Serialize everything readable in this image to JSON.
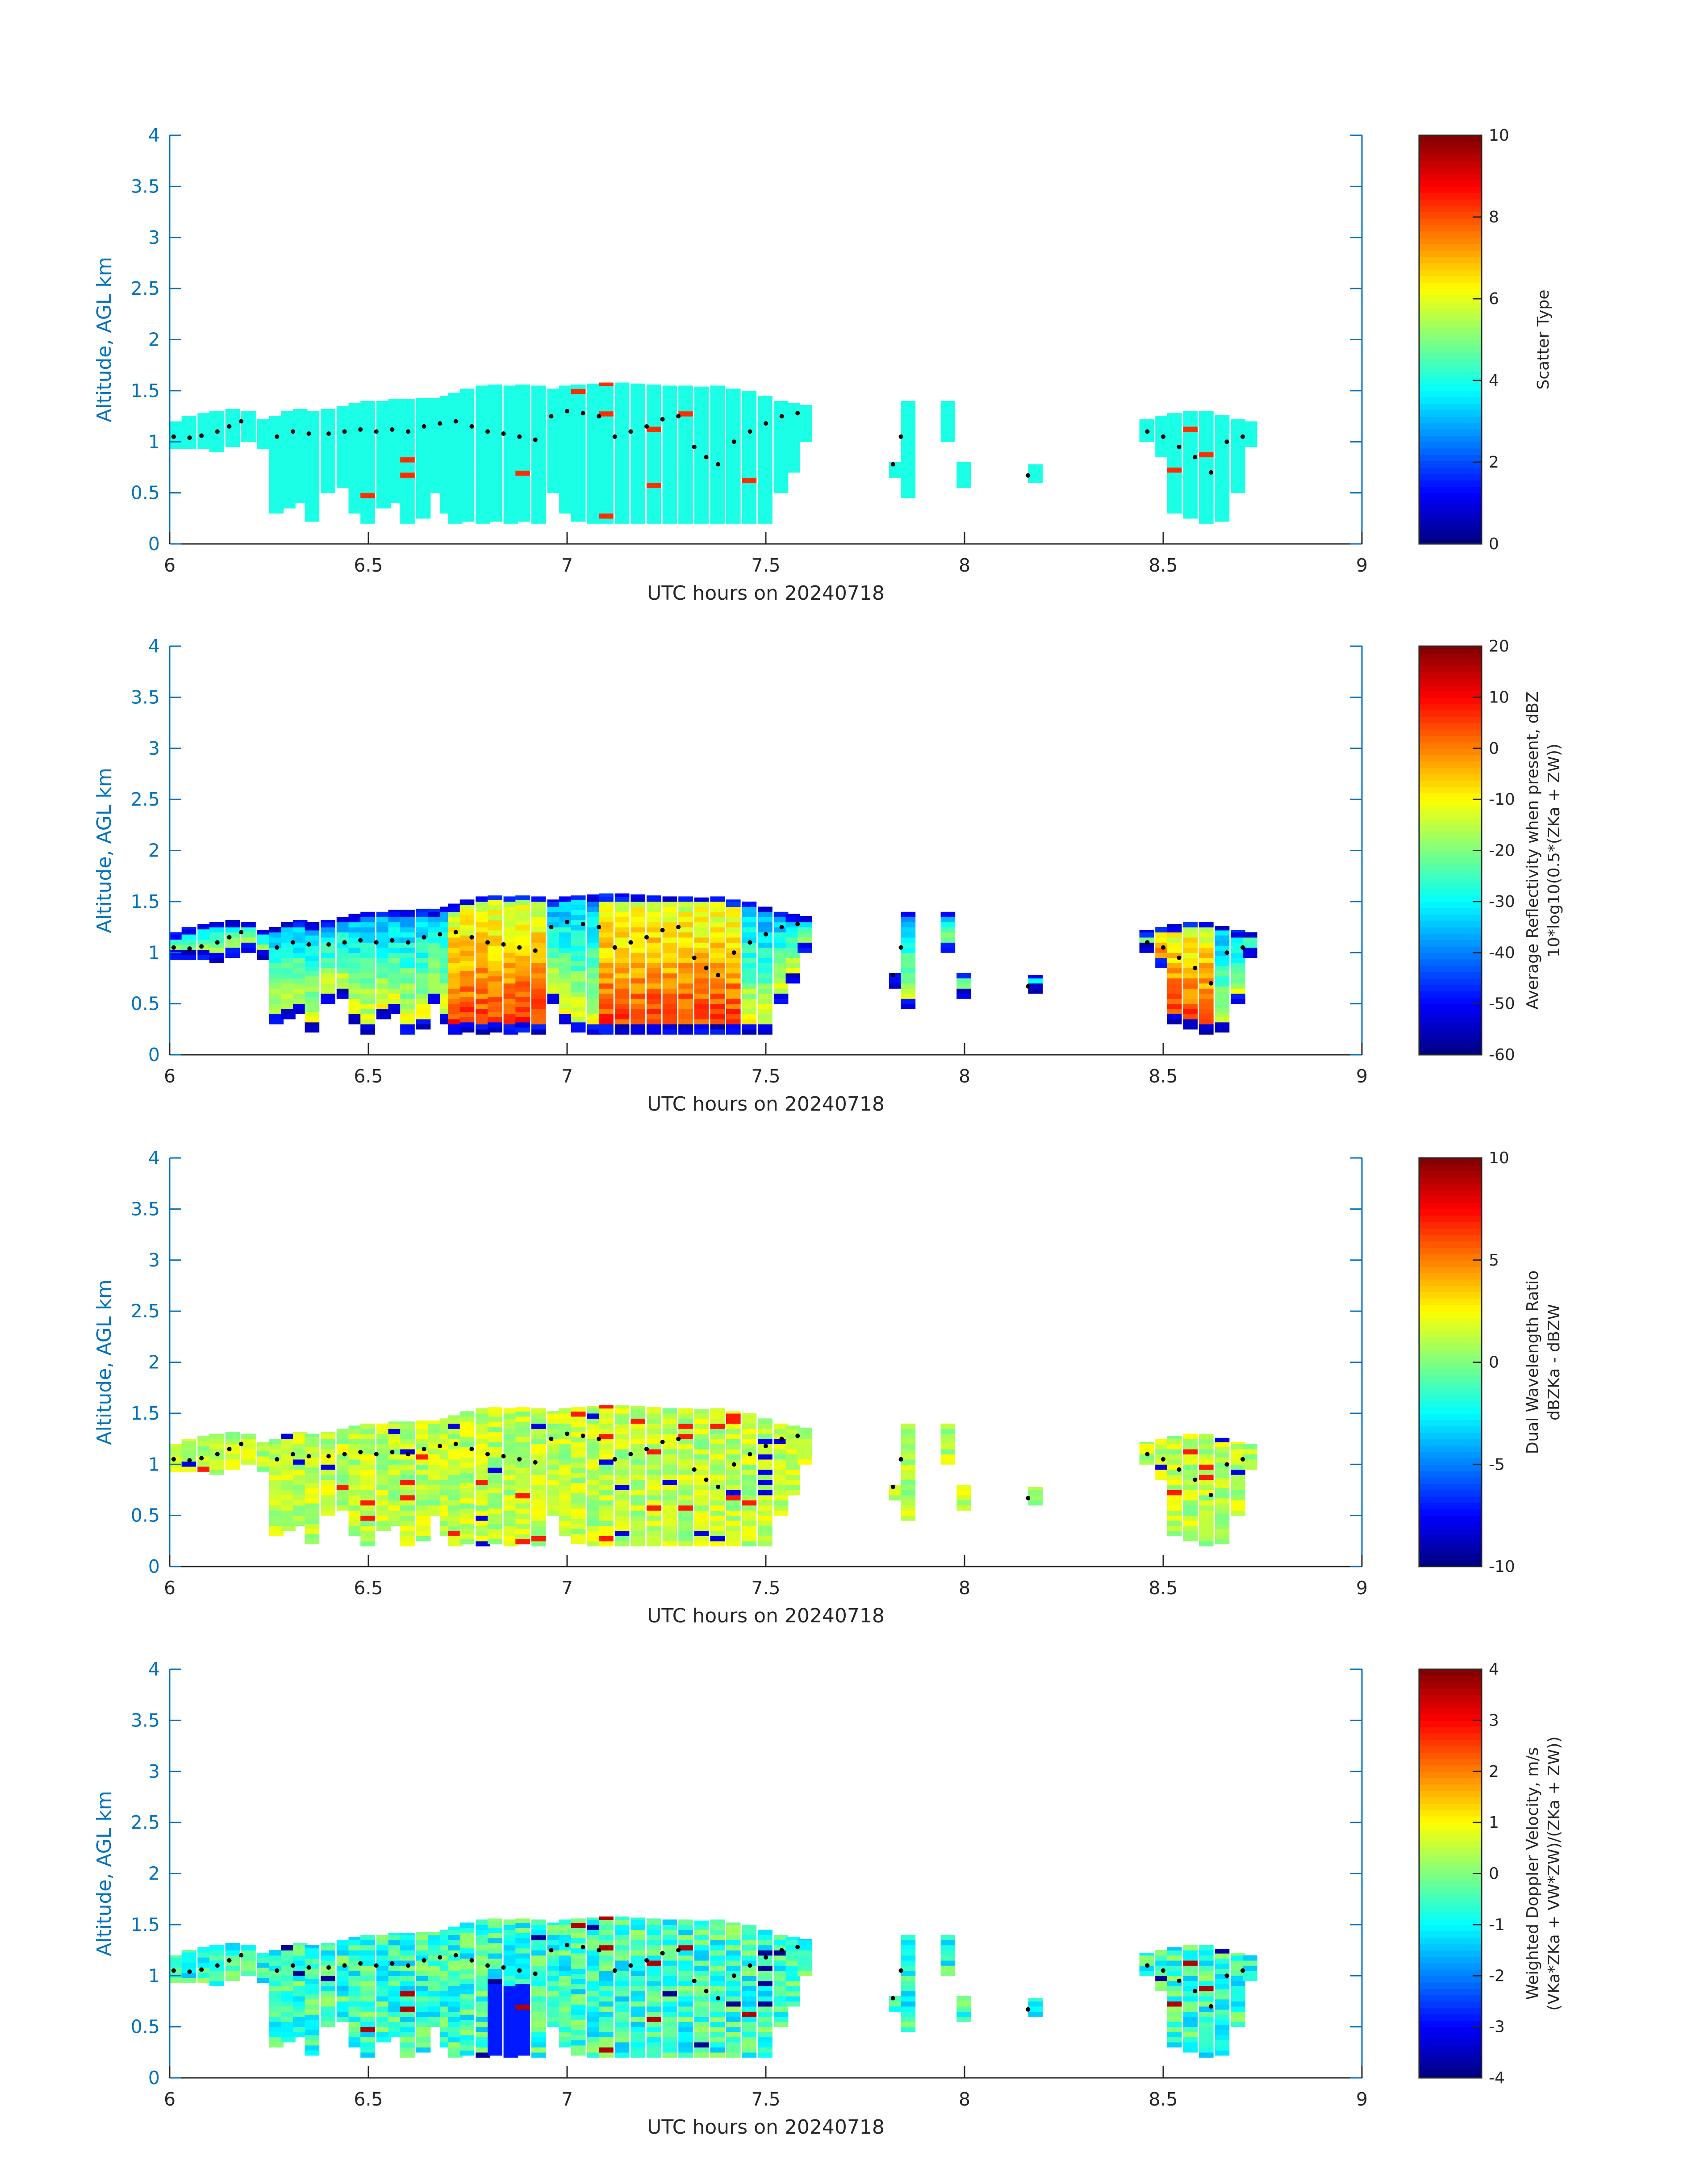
{
  "chart_data": [
    {
      "type": "heatmap",
      "xlabel": "UTC hours on 20240718",
      "ylabel": "Altitude, AGL km",
      "xlim": [
        6,
        9
      ],
      "ylim": [
        0,
        4
      ],
      "xticks": [
        "6",
        "6.5",
        "7",
        "7.5",
        "8",
        "8.5",
        "9"
      ],
      "yticks": [
        "0",
        "0.5",
        "1",
        "1.5",
        "2",
        "2.5",
        "3",
        "3.5",
        "4"
      ],
      "colorbar": {
        "label": [
          "Scatter Type"
        ],
        "lim": [
          0,
          10
        ],
        "ticks": [
          "0",
          "2",
          "4",
          "6",
          "8",
          "10"
        ]
      }
    },
    {
      "type": "heatmap",
      "xlabel": "UTC hours on 20240718",
      "ylabel": "Altitude, AGL km",
      "xlim": [
        6,
        9
      ],
      "ylim": [
        0,
        4
      ],
      "xticks": [
        "6",
        "6.5",
        "7",
        "7.5",
        "8",
        "8.5",
        "9"
      ],
      "yticks": [
        "0",
        "0.5",
        "1",
        "1.5",
        "2",
        "2.5",
        "3",
        "3.5",
        "4"
      ],
      "colorbar": {
        "label": [
          "Average Reflectivity when present, dBZ",
          "10*log10(0.5*(ZKa + ZW))"
        ],
        "lim": [
          -60,
          20
        ],
        "ticks": [
          "-60",
          "-50",
          "-40",
          "-30",
          "-20",
          "-10",
          "0",
          "10",
          "20"
        ]
      }
    },
    {
      "type": "heatmap",
      "xlabel": "UTC hours on 20240718",
      "ylabel": "Altitude, AGL km",
      "xlim": [
        6,
        9
      ],
      "ylim": [
        0,
        4
      ],
      "xticks": [
        "6",
        "6.5",
        "7",
        "7.5",
        "8",
        "8.5",
        "9"
      ],
      "yticks": [
        "0",
        "0.5",
        "1",
        "1.5",
        "2",
        "2.5",
        "3",
        "3.5",
        "4"
      ],
      "colorbar": {
        "label": [
          "Dual Wavelength Ratio",
          "dBZKa - dBZW"
        ],
        "lim": [
          -10,
          10
        ],
        "ticks": [
          "-10",
          "-5",
          "0",
          "5",
          "10"
        ]
      }
    },
    {
      "type": "heatmap",
      "xlabel": "UTC hours on 20240718",
      "ylabel": "Altitude, AGL km",
      "xlim": [
        6,
        9
      ],
      "ylim": [
        0,
        4
      ],
      "xticks": [
        "6",
        "6.5",
        "7",
        "7.5",
        "8",
        "8.5",
        "9"
      ],
      "yticks": [
        "0",
        "0.5",
        "1",
        "1.5",
        "2",
        "2.5",
        "3",
        "3.5",
        "4"
      ],
      "colorbar": {
        "label": [
          "Weighted Doppler Velocity, m/s",
          "(VKa*ZKa + VW*ZW)/(ZKa + ZW))"
        ],
        "lim": [
          -4,
          4
        ],
        "ticks": [
          "-4",
          "-3",
          "-2",
          "-1",
          "0",
          "1",
          "2",
          "3",
          "4"
        ]
      }
    }
  ],
  "cloud_segments": [
    [
      6.0,
      0.93,
      1.2
    ],
    [
      6.03,
      0.93,
      1.25
    ],
    [
      6.07,
      0.93,
      1.28
    ],
    [
      6.1,
      0.9,
      1.3
    ],
    [
      6.14,
      0.95,
      1.32
    ],
    [
      6.18,
      1.0,
      1.3
    ],
    [
      6.22,
      0.93,
      1.22
    ],
    [
      6.25,
      0.3,
      1.25
    ],
    [
      6.28,
      0.35,
      1.3
    ],
    [
      6.31,
      0.4,
      1.32
    ],
    [
      6.34,
      0.22,
      1.3
    ],
    [
      6.38,
      0.5,
      1.32
    ],
    [
      6.42,
      0.55,
      1.35
    ],
    [
      6.45,
      0.3,
      1.38
    ],
    [
      6.48,
      0.2,
      1.4
    ],
    [
      6.52,
      0.35,
      1.4
    ],
    [
      6.55,
      0.4,
      1.42
    ],
    [
      6.58,
      0.2,
      1.42
    ],
    [
      6.62,
      0.25,
      1.43
    ],
    [
      6.65,
      0.5,
      1.43
    ],
    [
      6.68,
      0.3,
      1.45
    ],
    [
      6.7,
      0.2,
      1.48
    ],
    [
      6.73,
      0.22,
      1.52
    ],
    [
      6.77,
      0.2,
      1.55
    ],
    [
      6.8,
      0.22,
      1.56
    ],
    [
      6.84,
      0.2,
      1.55
    ],
    [
      6.87,
      0.22,
      1.56
    ],
    [
      6.91,
      0.2,
      1.55
    ],
    [
      6.95,
      0.5,
      1.52
    ],
    [
      6.98,
      0.3,
      1.55
    ],
    [
      7.01,
      0.22,
      1.56
    ],
    [
      7.05,
      0.2,
      1.57
    ],
    [
      7.08,
      0.2,
      1.58
    ],
    [
      7.12,
      0.2,
      1.58
    ],
    [
      7.16,
      0.2,
      1.57
    ],
    [
      7.2,
      0.2,
      1.56
    ],
    [
      7.24,
      0.2,
      1.55
    ],
    [
      7.28,
      0.2,
      1.55
    ],
    [
      7.32,
      0.2,
      1.54
    ],
    [
      7.36,
      0.2,
      1.55
    ],
    [
      7.4,
      0.2,
      1.52
    ],
    [
      7.44,
      0.2,
      1.5
    ],
    [
      7.48,
      0.2,
      1.45
    ],
    [
      7.52,
      0.5,
      1.4
    ],
    [
      7.55,
      0.7,
      1.38
    ],
    [
      7.58,
      1.0,
      1.36
    ],
    [
      7.81,
      0.65,
      0.8
    ],
    [
      7.84,
      0.45,
      1.4
    ],
    [
      7.94,
      1.0,
      1.4
    ],
    [
      7.98,
      0.55,
      0.8
    ],
    [
      8.16,
      0.6,
      0.78
    ],
    [
      8.44,
      1.0,
      1.22
    ],
    [
      8.48,
      0.85,
      1.25
    ],
    [
      8.51,
      0.3,
      1.28
    ],
    [
      8.55,
      0.25,
      1.3
    ],
    [
      8.59,
      0.2,
      1.3
    ],
    [
      8.63,
      0.22,
      1.26
    ],
    [
      8.67,
      0.5,
      1.22
    ],
    [
      8.7,
      0.95,
      1.2
    ]
  ],
  "cloud_top_points": [
    [
      6.01,
      1.05
    ],
    [
      6.05,
      1.04
    ],
    [
      6.08,
      1.06
    ],
    [
      6.12,
      1.1
    ],
    [
      6.15,
      1.15
    ],
    [
      6.18,
      1.2
    ],
    [
      6.27,
      1.05
    ],
    [
      6.31,
      1.1
    ],
    [
      6.35,
      1.08
    ],
    [
      6.4,
      1.08
    ],
    [
      6.44,
      1.1
    ],
    [
      6.48,
      1.12
    ],
    [
      6.52,
      1.1
    ],
    [
      6.56,
      1.12
    ],
    [
      6.6,
      1.1
    ],
    [
      6.64,
      1.15
    ],
    [
      6.68,
      1.18
    ],
    [
      6.72,
      1.2
    ],
    [
      6.76,
      1.15
    ],
    [
      6.8,
      1.1
    ],
    [
      6.84,
      1.08
    ],
    [
      6.88,
      1.05
    ],
    [
      6.92,
      1.02
    ],
    [
      6.96,
      1.25
    ],
    [
      7.0,
      1.3
    ],
    [
      7.04,
      1.28
    ],
    [
      7.08,
      1.25
    ],
    [
      7.12,
      1.05
    ],
    [
      7.16,
      1.1
    ],
    [
      7.2,
      1.15
    ],
    [
      7.24,
      1.22
    ],
    [
      7.28,
      1.25
    ],
    [
      7.32,
      0.95
    ],
    [
      7.35,
      0.85
    ],
    [
      7.38,
      0.78
    ],
    [
      7.42,
      1.0
    ],
    [
      7.46,
      1.1
    ],
    [
      7.5,
      1.18
    ],
    [
      7.54,
      1.25
    ],
    [
      7.58,
      1.28
    ],
    [
      7.82,
      0.78
    ],
    [
      7.84,
      1.05
    ],
    [
      8.16,
      0.67
    ],
    [
      8.46,
      1.1
    ],
    [
      8.5,
      1.05
    ],
    [
      8.54,
      0.95
    ],
    [
      8.58,
      0.85
    ],
    [
      8.62,
      0.7
    ],
    [
      8.66,
      1.0
    ],
    [
      8.7,
      1.05
    ]
  ],
  "colors": {
    "axis": "#0072bd",
    "text": "#262626",
    "marker": "#000000"
  }
}
